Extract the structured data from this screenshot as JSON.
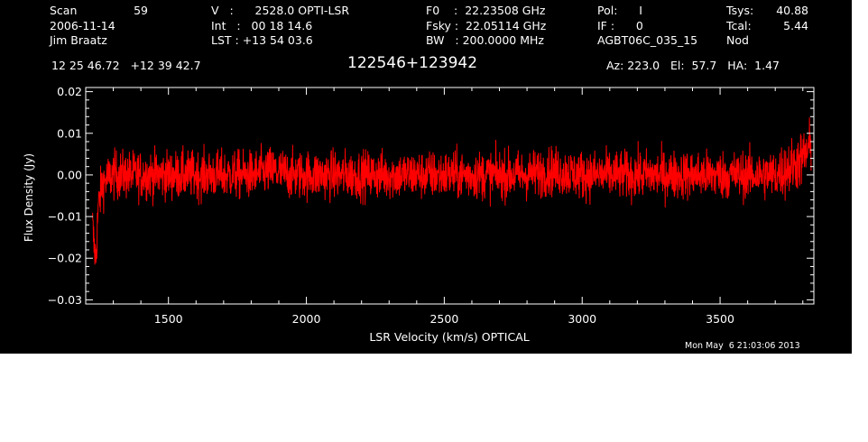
{
  "header": {
    "col1": {
      "scan_label": "Scan",
      "scan_value": "59",
      "date": "2006-11-14",
      "observer": "Jim Braatz"
    },
    "col2": {
      "v_line": "V   :      2528.0 OPTI-LSR",
      "int_line": "Int   :   00 18 14.6",
      "lst_line": "LST : +13 54 03.6"
    },
    "col3": {
      "f0_line": "F0    :  22.23508 GHz",
      "fsky_line": "Fsky :  22.05114 GHz",
      "bw_line": "BW   : 200.0000 MHz"
    },
    "col4": {
      "pol_line": "Pol:      I",
      "if_line": "IF :      0",
      "project": "AGBT06C_035_15"
    },
    "col5": {
      "tsys_label": "Tsys:",
      "tsys_value": "40.88",
      "tcal_label": "Tcal:",
      "tcal_value": "5.44",
      "mode": "Nod"
    },
    "coords": "12 25 46.72   +12 39 42.7",
    "source": "122546+123942",
    "azel": "Az: 223.0   El:  57.7   HA:  1.47"
  },
  "timestamp": "Mon May  6 21:03:06 2013",
  "colors": {
    "background": "#000000",
    "axes": "#ffffff",
    "trace": "#ff0000"
  },
  "chart_data": {
    "type": "line",
    "title": "122546+123942",
    "xlabel": "LSR Velocity (km/s) OPTICAL",
    "ylabel": "Flux Density (Jy)",
    "xlim": [
      1200,
      3840
    ],
    "ylim": [
      -0.031,
      0.021
    ],
    "x_ticks": [
      1500,
      2000,
      2500,
      3000,
      3500
    ],
    "x_tick_labels": [
      "1500",
      "2000",
      "2500",
      "3000",
      "3500"
    ],
    "y_ticks": [
      -0.03,
      -0.02,
      -0.01,
      0.0,
      0.01,
      0.02
    ],
    "y_tick_labels": [
      "−0.03",
      "−0.02",
      "−0.01",
      "0.00",
      "0.01",
      "0.02"
    ],
    "grid": false,
    "series": [
      {
        "x": [
          1225,
          1230,
          1237,
          1245,
          1260,
          1300,
          1400,
          1500,
          1600,
          1700,
          1800,
          1870,
          1950,
          2100,
          2200,
          2300,
          2400,
          2500,
          2600,
          2700,
          2800,
          2890,
          3000,
          3100,
          3200,
          3300,
          3400,
          3500,
          3600,
          3700,
          3760,
          3800,
          3830
        ],
        "values": [
          -0.012,
          -0.017,
          -0.02,
          -0.008,
          -0.002,
          0.0,
          0.0,
          0.0,
          0.0,
          0.0,
          0.0,
          0.001,
          0.0,
          0.0,
          0.0,
          0.0,
          0.0,
          0.0,
          0.0,
          0.0,
          0.0,
          0.001,
          0.0,
          0.0,
          0.0,
          0.0,
          0.0,
          0.0,
          0.0,
          0.0,
          0.002,
          0.004,
          0.007
        ]
      }
    ]
  }
}
